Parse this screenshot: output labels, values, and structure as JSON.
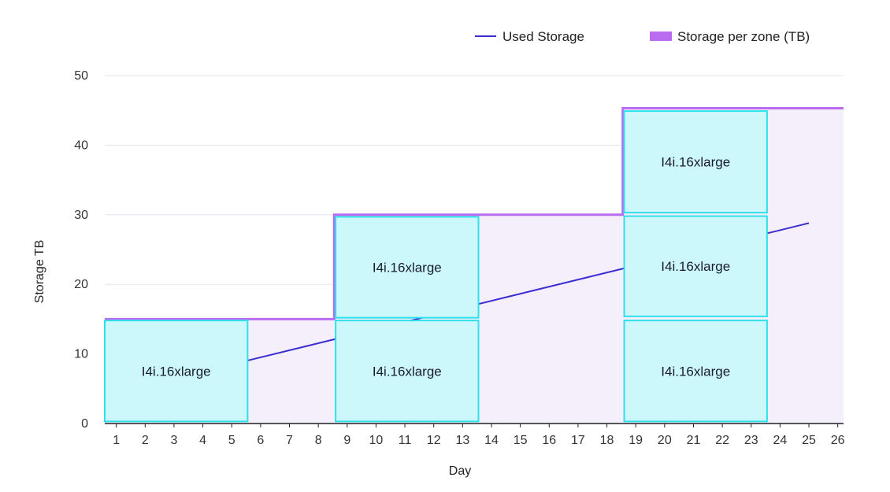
{
  "chart_data": {
    "type": "line",
    "xlabel": "Day",
    "ylabel": "Storage TB",
    "x_ticks": [
      1,
      2,
      3,
      4,
      5,
      6,
      7,
      8,
      9,
      10,
      11,
      12,
      13,
      14,
      15,
      16,
      17,
      18,
      19,
      20,
      21,
      22,
      23,
      24,
      25,
      26
    ],
    "y_ticks": [
      0,
      10,
      20,
      30,
      40,
      50
    ],
    "xlim": [
      0.6,
      26.2
    ],
    "ylim": [
      0,
      50
    ],
    "grid": true,
    "legend_position": "top-right",
    "series": [
      {
        "name": "Used Storage",
        "kind": "line",
        "color": "#3b2fd1",
        "points": [
          [
            5.5,
            9.0
          ],
          [
            25,
            28.8
          ]
        ]
      },
      {
        "name": "Storage per zone (TB)",
        "kind": "step-area",
        "color": "#b96cf0",
        "fill": "#f5eefb",
        "points": [
          [
            0.6,
            15
          ],
          [
            8.55,
            15
          ],
          [
            8.55,
            30
          ],
          [
            18.55,
            30
          ],
          [
            18.55,
            45.3
          ],
          [
            26.2,
            45.3
          ]
        ]
      }
    ],
    "instances": [
      {
        "label": "I4i.16xlarge",
        "x_start": 0.6,
        "x_end": 5.55,
        "y_start": 0.3,
        "y_end": 14.8
      },
      {
        "label": "I4i.16xlarge",
        "x_start": 8.6,
        "x_end": 13.55,
        "y_start": 0.3,
        "y_end": 14.8
      },
      {
        "label": "I4i.16xlarge",
        "x_start": 8.6,
        "x_end": 13.55,
        "y_start": 15.2,
        "y_end": 29.7
      },
      {
        "label": "I4i.16xlarge",
        "x_start": 18.6,
        "x_end": 23.55,
        "y_start": 0.3,
        "y_end": 14.8
      },
      {
        "label": "I4i.16xlarge",
        "x_start": 18.6,
        "x_end": 23.55,
        "y_start": 15.4,
        "y_end": 29.8
      },
      {
        "label": "I4i.16xlarge",
        "x_start": 18.6,
        "x_end": 23.55,
        "y_start": 30.3,
        "y_end": 44.9
      }
    ],
    "instance_fill": "#cdf8fb",
    "instance_stroke": "#2ee0ec",
    "grid_color": "#e3e6f0",
    "axis_color": "#222222"
  }
}
